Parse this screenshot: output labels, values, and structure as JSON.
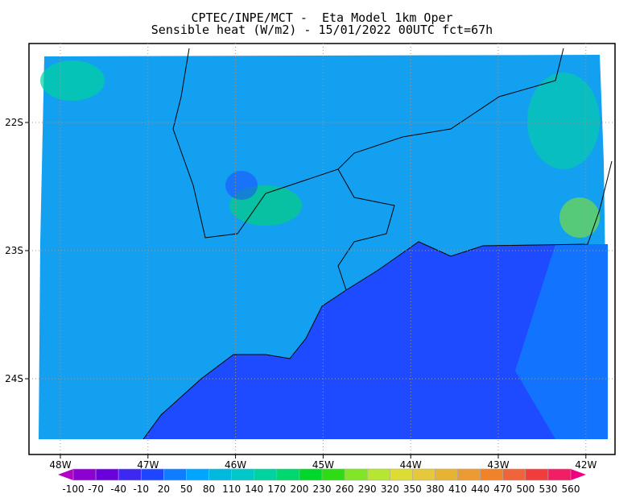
{
  "title_line1": "CPTEC/INPE/MCT -  Eta Model 1km Oper",
  "title_line2": "Sensible heat (W/m2) - 15/01/2022 00UTC fct=67h",
  "map": {
    "variable": "Sensible heat",
    "units": "W/m2",
    "lon_ticks": [
      "48W",
      "47W",
      "46W",
      "45W",
      "44W",
      "43W",
      "42W"
    ],
    "lat_ticks": [
      "22S",
      "23S",
      "24S"
    ],
    "grid": "dotted",
    "land_color": "#14a0f0",
    "ocean_color": "#1e4bff"
  },
  "colorbar": {
    "labels": [
      "-100",
      "-70",
      "-40",
      "-10",
      "20",
      "50",
      "80",
      "110",
      "140",
      "170",
      "200",
      "230",
      "260",
      "290",
      "320",
      "350",
      "380",
      "410",
      "440",
      "470",
      "500",
      "530",
      "560"
    ],
    "colors": [
      "#8c00d2",
      "#6a00dc",
      "#3c28f0",
      "#1e46ff",
      "#0f7dff",
      "#00a5ff",
      "#00b9dc",
      "#00c8c8",
      "#00d2a0",
      "#00d76e",
      "#00d72d",
      "#2ddc14",
      "#82e628",
      "#b4e632",
      "#dcdc32",
      "#e6c83c",
      "#e6b432",
      "#eb9b32",
      "#f08228",
      "#f0643c",
      "#f03c3c",
      "#f01e64"
    ],
    "under_color": "#b400c8",
    "over_color": "#f00082"
  }
}
